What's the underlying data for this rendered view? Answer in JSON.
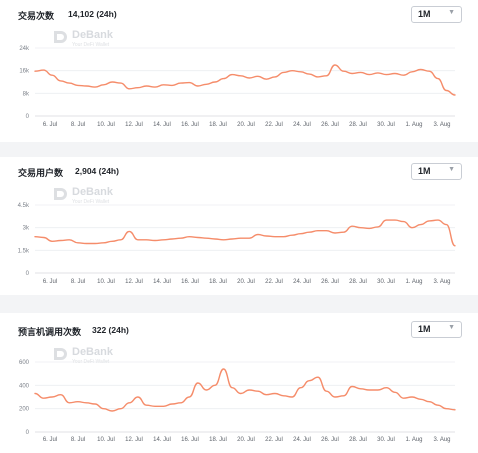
{
  "brand": {
    "name": "DeBank",
    "tagline": "Your DeFi Wallet"
  },
  "line_color": "#f58c6a",
  "panels": [
    {
      "title": "交易次数",
      "stat": "14,102 (24h)",
      "range": "1M"
    },
    {
      "title": "交易用户数",
      "stat": "2,904 (24h)",
      "range": "1M"
    },
    {
      "title": "预言机调用次数",
      "stat": "322 (24h)",
      "range": "1M"
    }
  ],
  "chart_data": [
    {
      "type": "line",
      "x_labels": [
        "6. Jul",
        "8. Jul",
        "10. Jul",
        "12. Jul",
        "14. Jul",
        "16. Jul",
        "18. Jul",
        "20. Jul",
        "22. Jul",
        "24. Jul",
        "26. Jul",
        "28. Jul",
        "30. Jul",
        "1. Aug",
        "3. Aug"
      ],
      "y_ticks": [
        0,
        8000,
        16000,
        24000
      ],
      "y_tick_labels": [
        "0",
        "8k",
        "16k",
        "24k"
      ],
      "ylim": [
        0,
        24000
      ],
      "series": [
        {
          "values": [
            15800,
            16200,
            14400,
            12400,
            11600,
            10800,
            10600,
            10200,
            11000,
            12000,
            11600,
            9600,
            10000,
            10600,
            10200,
            11000,
            10800,
            11600,
            11800,
            10600,
            11200,
            12000,
            13200,
            14600,
            14200,
            13400,
            14000,
            13000,
            13800,
            15400,
            16000,
            15600,
            14800,
            13800,
            14200,
            18000,
            15800,
            15000,
            15400,
            14600,
            15200,
            14600,
            15000,
            14400,
            15600,
            16400,
            15800,
            13200,
            9000,
            7400
          ]
        }
      ]
    },
    {
      "type": "line",
      "x_labels": [
        "6. Jul",
        "8. Jul",
        "10. Jul",
        "12. Jul",
        "14. Jul",
        "16. Jul",
        "18. Jul",
        "20. Jul",
        "22. Jul",
        "24. Jul",
        "26. Jul",
        "28. Jul",
        "30. Jul",
        "1. Aug",
        "3. Aug"
      ],
      "y_ticks": [
        0,
        1500,
        3000,
        4500
      ],
      "y_tick_labels": [
        "0",
        "1.5k",
        "3k",
        "4.5k"
      ],
      "ylim": [
        0,
        4500
      ],
      "series": [
        {
          "values": [
            2400,
            2350,
            2100,
            2150,
            2200,
            2000,
            1950,
            1950,
            2000,
            2100,
            2200,
            2750,
            2200,
            2200,
            2150,
            2200,
            2250,
            2300,
            2400,
            2350,
            2300,
            2250,
            2200,
            2250,
            2300,
            2300,
            2550,
            2450,
            2400,
            2400,
            2500,
            2600,
            2700,
            2800,
            2800,
            2650,
            2700,
            3100,
            3000,
            2950,
            3050,
            3500,
            3500,
            3400,
            3000,
            3200,
            3450,
            3500,
            3200,
            1800
          ]
        }
      ]
    },
    {
      "type": "line",
      "x_labels": [
        "6. Jul",
        "8. Jul",
        "10. Jul",
        "12. Jul",
        "14. Jul",
        "16. Jul",
        "18. Jul",
        "20. Jul",
        "22. Jul",
        "24. Jul",
        "26. Jul",
        "28. Jul",
        "30. Jul",
        "1. Aug",
        "3. Aug"
      ],
      "y_ticks": [
        0,
        200,
        400,
        600
      ],
      "y_tick_labels": [
        "0",
        "200",
        "400",
        "600"
      ],
      "ylim": [
        0,
        600
      ],
      "series": [
        {
          "values": [
            330,
            290,
            300,
            320,
            250,
            260,
            250,
            240,
            200,
            180,
            200,
            250,
            300,
            230,
            220,
            220,
            240,
            250,
            300,
            420,
            360,
            400,
            540,
            380,
            330,
            360,
            350,
            320,
            330,
            310,
            300,
            380,
            440,
            470,
            350,
            300,
            310,
            390,
            370,
            360,
            360,
            380,
            340,
            290,
            300,
            280,
            260,
            230,
            200,
            190
          ]
        }
      ]
    }
  ]
}
